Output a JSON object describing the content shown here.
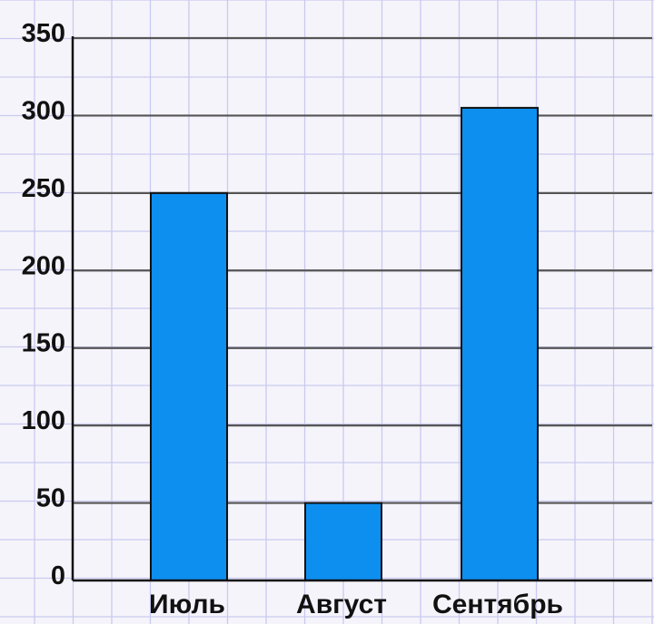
{
  "chart_data": {
    "type": "bar",
    "title": "",
    "xlabel": "",
    "ylabel": "",
    "categories": [
      "Июль",
      "Август",
      "Сентябрь"
    ],
    "values": [
      250,
      50,
      305
    ],
    "ylim": [
      0,
      350
    ],
    "yticks": [
      "0",
      "50",
      "100",
      "150",
      "200",
      "250",
      "300",
      "350"
    ],
    "grid": true,
    "legend": "none",
    "colors": {
      "bar": "#0d8ff0",
      "bar_outline": "#111111",
      "gridline": "#555555",
      "paper_grid": "#c9c9ef",
      "background": "#f6f4fb"
    }
  }
}
